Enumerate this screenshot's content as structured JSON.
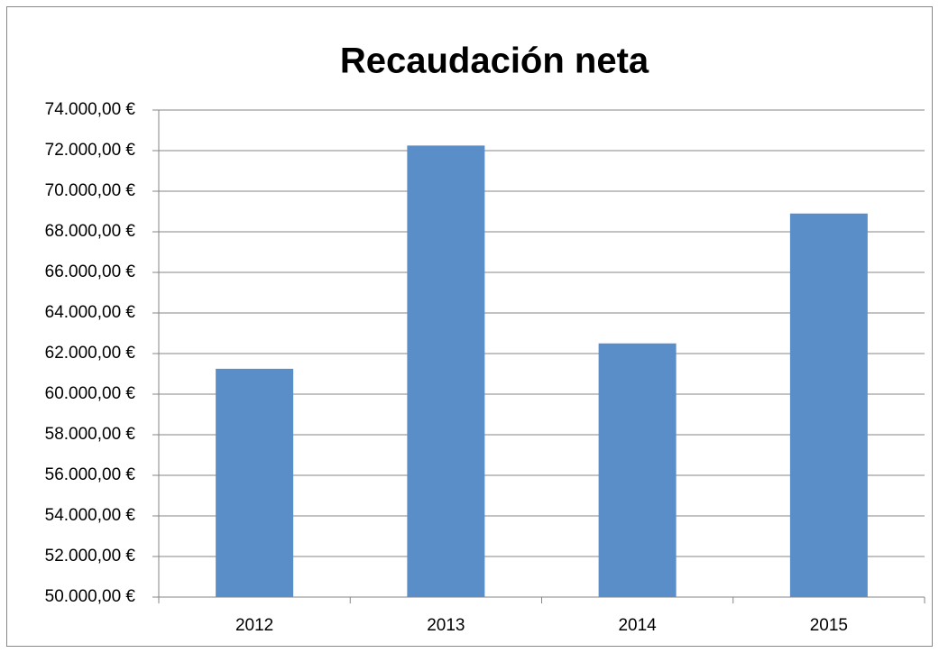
{
  "chart_data": {
    "type": "bar",
    "title": "Recaudación neta",
    "categories": [
      "2012",
      "2013",
      "2014",
      "2015"
    ],
    "values": [
      61250,
      72250,
      62500,
      68900
    ],
    "color": "#5a8ec9",
    "ylim": [
      50000,
      74000
    ],
    "yticks": [
      {
        "value": 50000,
        "label": "50.000,00 €"
      },
      {
        "value": 52000,
        "label": "52.000,00 €"
      },
      {
        "value": 54000,
        "label": "54.000,00 €"
      },
      {
        "value": 56000,
        "label": "56.000,00 €"
      },
      {
        "value": 58000,
        "label": "58.000,00 €"
      },
      {
        "value": 60000,
        "label": "60.000,00 €"
      },
      {
        "value": 62000,
        "label": "62.000,00 €"
      },
      {
        "value": 64000,
        "label": "64.000,00 €"
      },
      {
        "value": 66000,
        "label": "66.000,00 €"
      },
      {
        "value": 68000,
        "label": "68.000,00 €"
      },
      {
        "value": 70000,
        "label": "70.000,00 €"
      },
      {
        "value": 72000,
        "label": "72.000,00 €"
      },
      {
        "value": 74000,
        "label": "74.000,00 €"
      }
    ],
    "grid": true
  }
}
